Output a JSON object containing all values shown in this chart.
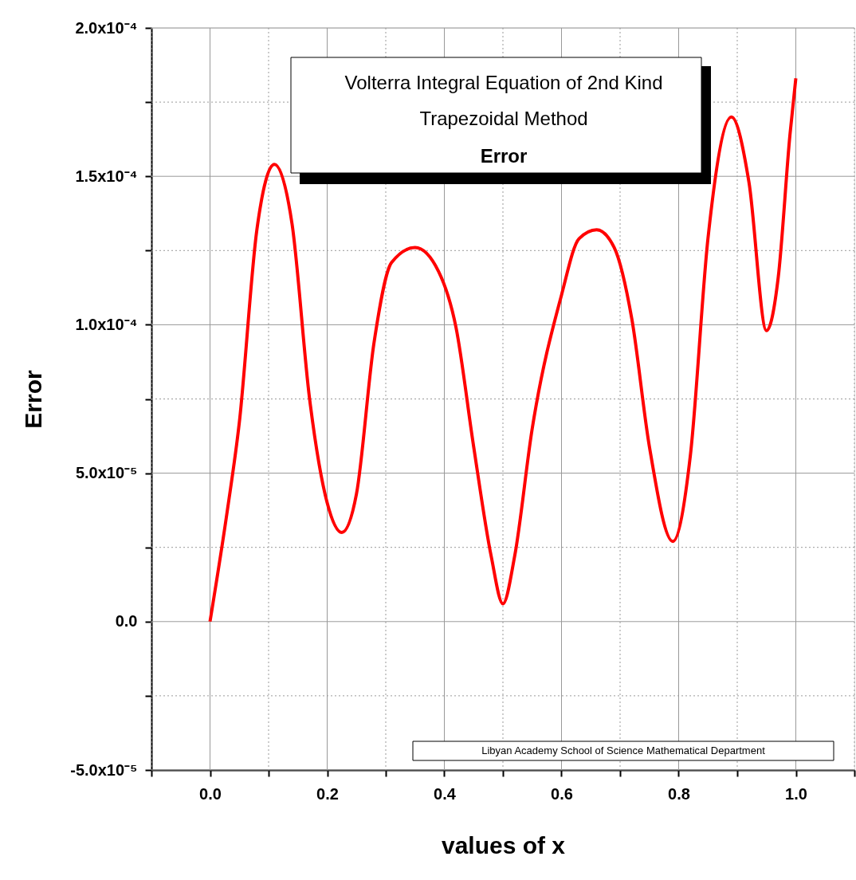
{
  "chart_data": {
    "type": "line",
    "title": "Volterra Integral Equation of 2nd Kind",
    "subtitle": "Trapezoidal Method",
    "xlabel": "values of x",
    "ylabel": "Error",
    "annotations": [
      "Error",
      "Libyan Academy   School of Science  Mathematical Department"
    ],
    "x": [
      0,
      0.03,
      0.05,
      0.08,
      0.11,
      0.14,
      0.17,
      0.2,
      0.225,
      0.25,
      0.28,
      0.31,
      0.35,
      0.39,
      0.42,
      0.45,
      0.48,
      0.5,
      0.52,
      0.55,
      0.6,
      0.63,
      0.66,
      0.69,
      0.72,
      0.75,
      0.79,
      0.82,
      0.85,
      0.89,
      0.92,
      0.95,
      0.97,
      0.99,
      1.0
    ],
    "series": [
      {
        "color": "#ff0000",
        "values": [
          0,
          3.8e-05,
          6.7e-05,
          0.000132,
          0.000154,
          0.000134,
          7.5e-05,
          4e-05,
          3e-05,
          4.3e-05,
          9.4e-05,
          0.000121,
          0.000126,
          0.000118,
          9.9e-05,
          5.9e-05,
          2.2e-05,
          6e-06,
          2.2e-05,
          6.5e-05,
          0.00011,
          0.000129,
          0.000132,
          0.000126,
          0.000102,
          5.9e-05,
          2.7e-05,
          5.6e-05,
          0.000129,
          0.00017,
          0.000148,
          9.8e-05,
          0.000116,
          0.000164,
          0.000183
        ]
      }
    ],
    "xlim": [
      -0.1,
      1.1
    ],
    "xticks": [
      {
        "value": -0.1,
        "label": null
      },
      {
        "value": 0,
        "label": "0.0"
      },
      {
        "value": 0.1,
        "label": null
      },
      {
        "value": 0.2,
        "label": "0.2"
      },
      {
        "value": 0.3,
        "label": null
      },
      {
        "value": 0.4,
        "label": "0.4"
      },
      {
        "value": 0.5,
        "label": null
      },
      {
        "value": 0.6,
        "label": "0.6"
      },
      {
        "value": 0.7,
        "label": null
      },
      {
        "value": 0.8,
        "label": "0.8"
      },
      {
        "value": 0.9,
        "label": null
      },
      {
        "value": 1.0,
        "label": "1.0"
      },
      {
        "value": 1.1,
        "label": null
      }
    ],
    "ylim": [
      -5e-05,
      0.0002
    ],
    "yticks": [
      {
        "value": -5e-05,
        "label": "-5.0x10⁻⁵"
      },
      {
        "value": -2.5e-05,
        "label": null
      },
      {
        "value": 0,
        "label": "0.0"
      },
      {
        "value": 2.5e-05,
        "label": null
      },
      {
        "value": 5e-05,
        "label": "5.0x10⁻⁵"
      },
      {
        "value": 7.5e-05,
        "label": null
      },
      {
        "value": 0.0001,
        "label": "1.0x10⁻⁴"
      },
      {
        "value": 0.000125,
        "label": null
      },
      {
        "value": 0.00015,
        "label": "1.5x10⁻⁴"
      },
      {
        "value": 0.000175,
        "label": null
      },
      {
        "value": 0.0002,
        "label": "2.0x10⁻⁴"
      }
    ],
    "grid": true,
    "marker": "none",
    "line_style": "solid"
  }
}
